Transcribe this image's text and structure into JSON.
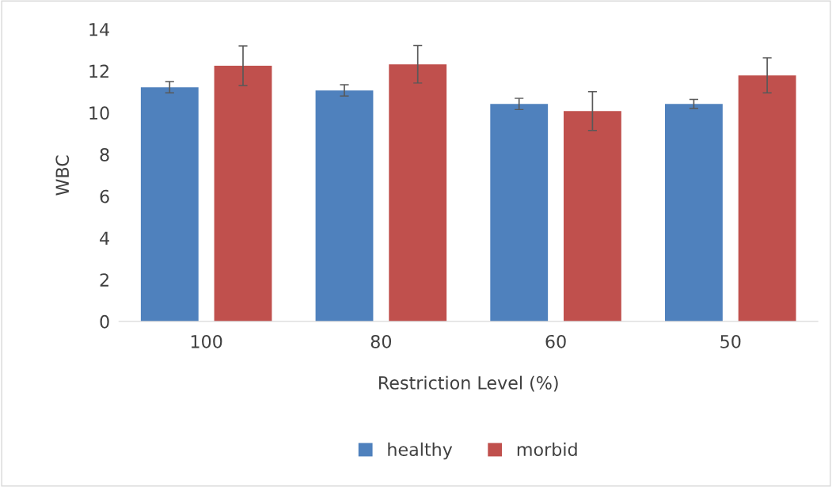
{
  "chart_data": {
    "type": "bar",
    "xlabel": "Restriction Level (%)",
    "ylabel": "WBC",
    "categories": [
      "100",
      "80",
      "60",
      "50"
    ],
    "series": [
      {
        "name": "healthy",
        "color": "#4f81bd",
        "values": [
          11.22,
          11.07,
          10.42,
          10.42
        ],
        "errors": [
          0.27,
          0.27,
          0.27,
          0.22
        ]
      },
      {
        "name": "morbid",
        "color": "#c0504d",
        "values": [
          12.25,
          12.32,
          10.08,
          11.79
        ],
        "errors": [
          0.95,
          0.9,
          0.93,
          0.84
        ]
      }
    ],
    "ylim": [
      0,
      14
    ],
    "yticks": [
      0,
      2,
      4,
      6,
      8,
      10,
      12,
      14
    ],
    "grid": false,
    "legend": "bottom"
  }
}
